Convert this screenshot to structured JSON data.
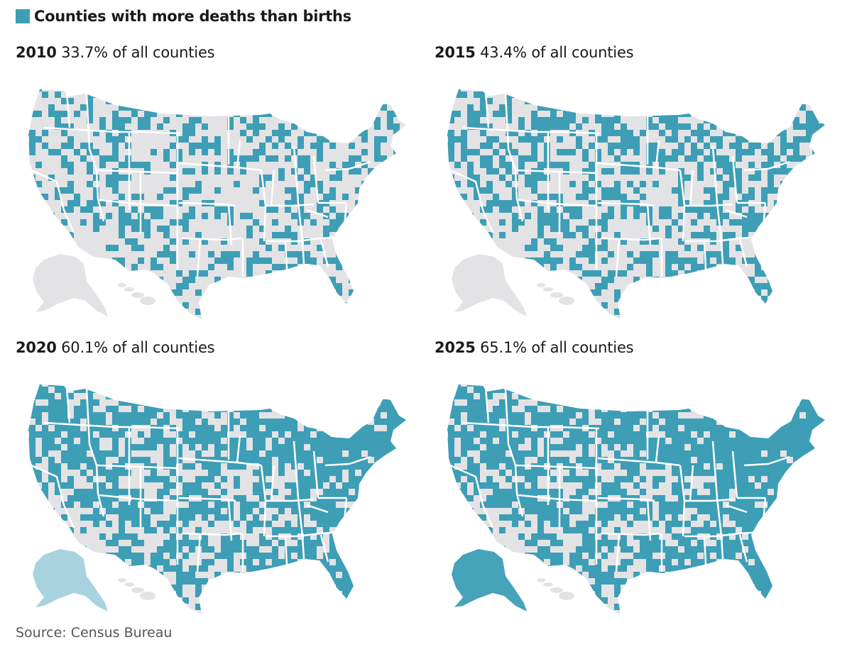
{
  "legend": {
    "label": "Counties with more deaths than births",
    "color": "#3d9eb6"
  },
  "colors": {
    "land": "#e3e3e5",
    "highlight": "#3d9eb6",
    "border": "#ffffff"
  },
  "panels": [
    {
      "year": "2010",
      "share_text": "33.7% of all counties",
      "share": 33.7
    },
    {
      "year": "2015",
      "share_text": "43.4% of all counties",
      "share": 43.4
    },
    {
      "year": "2020",
      "share_text": "60.1% of all counties",
      "share": 60.1
    },
    {
      "year": "2025",
      "share_text": "65.1% of all counties",
      "share": 65.1
    }
  ],
  "source": "Source: Census Bureau"
}
